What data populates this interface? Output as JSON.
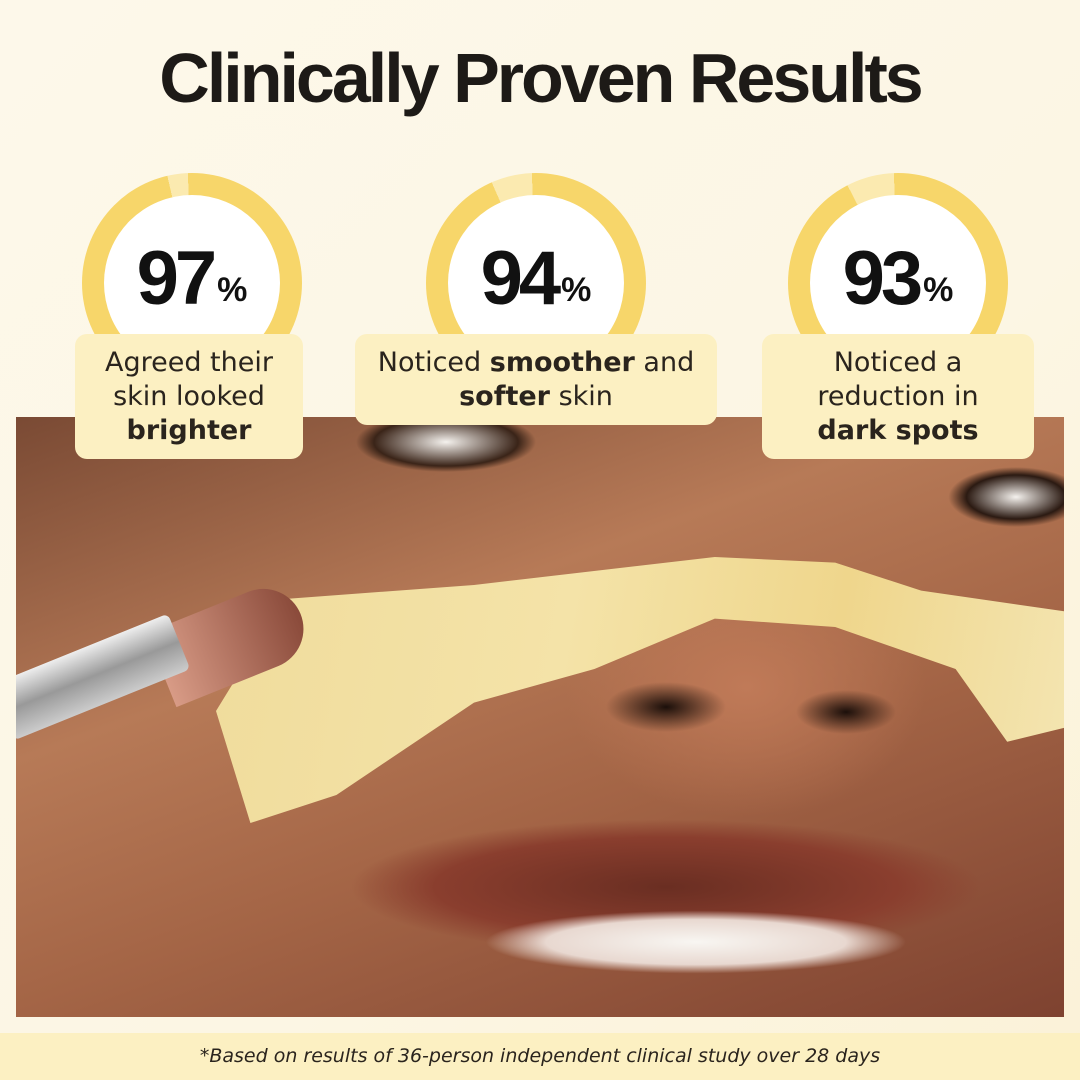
{
  "title": "Clinically Proven Results",
  "colors": {
    "ring": "#f7d66a",
    "ring_remainder": "#fbeab0",
    "card": "#fcf0c2",
    "background": "#fdf8ea"
  },
  "stats": [
    {
      "value": 97,
      "number": "97",
      "unit": "%",
      "text_before": "Agreed their skin looked",
      "text_bold": "brighter",
      "text_middle": "",
      "text_bold2": "",
      "text_after": ""
    },
    {
      "value": 94,
      "number": "94",
      "unit": "%",
      "text_before": "Noticed",
      "text_bold": "smoother",
      "text_middle": "and",
      "text_bold2": "softer",
      "text_after": "skin"
    },
    {
      "value": 93,
      "number": "93",
      "unit": "%",
      "text_before": "Noticed a reduction in",
      "text_bold": "dark spots",
      "text_middle": "",
      "text_bold2": "",
      "text_after": ""
    }
  ],
  "footnote": "*Based on results of 36-person independent clinical study over 28 days"
}
